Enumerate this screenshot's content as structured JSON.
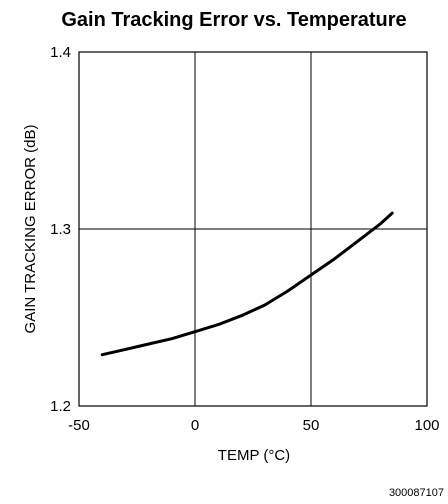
{
  "chart_data": {
    "type": "line",
    "title": "Gain Tracking Error vs. Temperature",
    "xlabel": "TEMP (°C)",
    "ylabel": "GAIN TRACKING ERROR (dB)",
    "xlim": [
      -50,
      100
    ],
    "ylim": [
      1.2,
      1.4
    ],
    "xticks": [
      -50,
      0,
      50,
      100
    ],
    "xtick_labels": [
      "-50",
      "0",
      "50",
      "100"
    ],
    "yticks": [
      1.2,
      1.3,
      1.4
    ],
    "ytick_labels": [
      "1.2",
      "1.3",
      "1.4"
    ],
    "grid": true,
    "series": [
      {
        "x": [
          -40,
          -30,
          -20,
          -10,
          0,
          10,
          20,
          30,
          40,
          50,
          60,
          70,
          80,
          85
        ],
        "y": [
          1.229,
          1.232,
          1.235,
          1.238,
          1.242,
          1.246,
          1.251,
          1.257,
          1.265,
          1.274,
          1.283,
          1.293,
          1.303,
          1.309
        ],
        "color": "#000000"
      }
    ]
  },
  "figure_id": "300087107"
}
